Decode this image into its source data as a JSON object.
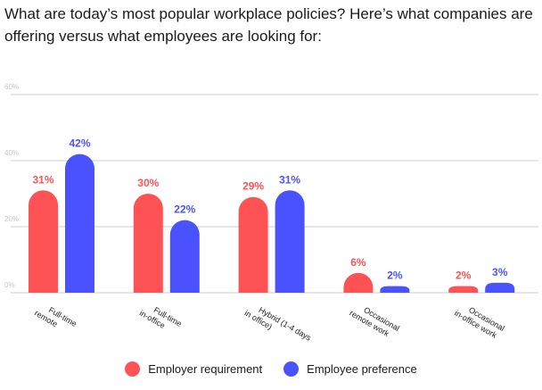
{
  "title": "What are today’s most popular workplace policies? Here’s what companies are offering versus what employees are looking for:",
  "colors": {
    "employer": "#ff5254",
    "employee": "#4a52ff"
  },
  "chart_data": {
    "type": "bar",
    "title": "What are today’s most popular workplace policies? Here’s what companies are offering versus what employees are looking for:",
    "xlabel": "",
    "ylabel": "",
    "ylim": [
      0,
      60
    ],
    "yticks": [
      "0%",
      "20%",
      "40%",
      "60%"
    ],
    "ytick_values": [
      0,
      20,
      40,
      60
    ],
    "grid": true,
    "legend_position": "bottom-center",
    "categories": [
      [
        "Full-time",
        "remote"
      ],
      [
        "Full-time",
        "in-office"
      ],
      [
        "Hybrid (1-4 days",
        "in office)"
      ],
      [
        "Occasional",
        "remote work"
      ],
      [
        "Occasional",
        "in-office work"
      ]
    ],
    "series": [
      {
        "name": "Employer requirement",
        "values": [
          31,
          30,
          29,
          6,
          2
        ],
        "labels": [
          "31%",
          "30%",
          "29%",
          "6%",
          "2%"
        ]
      },
      {
        "name": "Employee preference",
        "values": [
          42,
          22,
          31,
          2,
          3
        ],
        "labels": [
          "42%",
          "22%",
          "31%",
          "2%",
          "3%"
        ]
      }
    ]
  },
  "legend": [
    {
      "label": "Employer requirement"
    },
    {
      "label": "Employee preference"
    }
  ]
}
